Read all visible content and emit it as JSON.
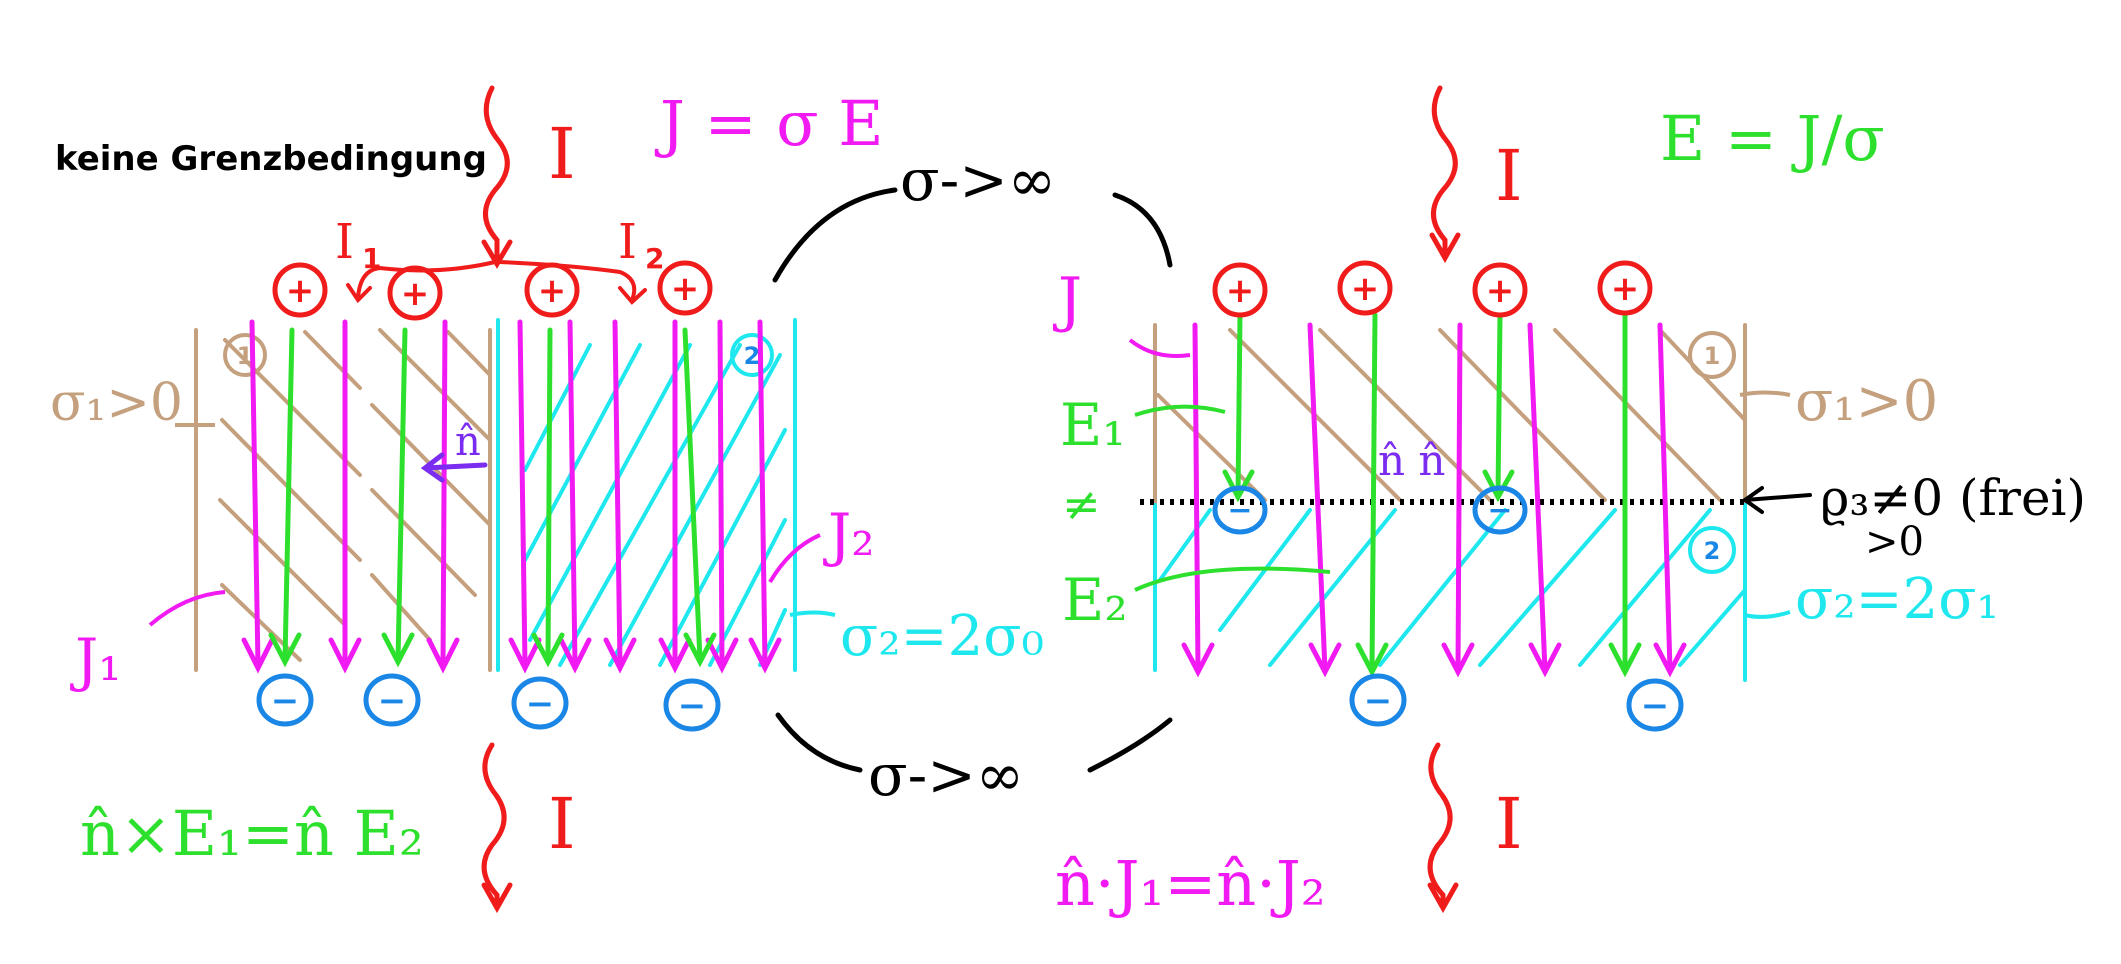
{
  "colors": {
    "red": "#f01c1c",
    "magenta": "#f21af2",
    "green": "#2ee02e",
    "tan": "#c4a07e",
    "cyan": "#1ee8ee",
    "blue": "#1a86e6",
    "purple": "#7a2cf0",
    "black": "#000000"
  },
  "left": {
    "note": "keine Grenzbedingung",
    "current_top": "I",
    "current_bottom": "I",
    "split_left": "I",
    "split_left_sub": "1",
    "split_right": "I",
    "split_right_sub": "2",
    "formula_J": "J = σ E",
    "region1_marker": "1",
    "region2_marker": "2",
    "sigma1_label": "σ₁>0",
    "sigma2_label": "σ₂=2σ₀",
    "n_label": "n̂",
    "J1_label": "J₁",
    "J2_label": "J₂",
    "boundary_formula": "n̂×E₁=n̂ E₂",
    "plus_symbol": "+",
    "minus_symbol": "−"
  },
  "middle": {
    "sigma_top": "σ->∞",
    "sigma_bottom": "σ->∞"
  },
  "right": {
    "current_top": "I",
    "current_bottom": "I",
    "formula_E": "E = J/σ",
    "J_label": "J",
    "E1_label": "E₁",
    "neq": "≠",
    "E2_label": "E₂",
    "n_label": "n̂ n̂",
    "region1_marker": "1",
    "region2_marker": "2",
    "sigma1_label": "σ₁>0",
    "sigma2_label": "σ₂=2σ₁",
    "rho_label": "ϱ₃≠0 (frei)",
    "rho_sub": ">0",
    "boundary_formula": "n̂·J₁=n̂·J₂",
    "plus_symbol": "+",
    "minus_symbol": "−"
  }
}
